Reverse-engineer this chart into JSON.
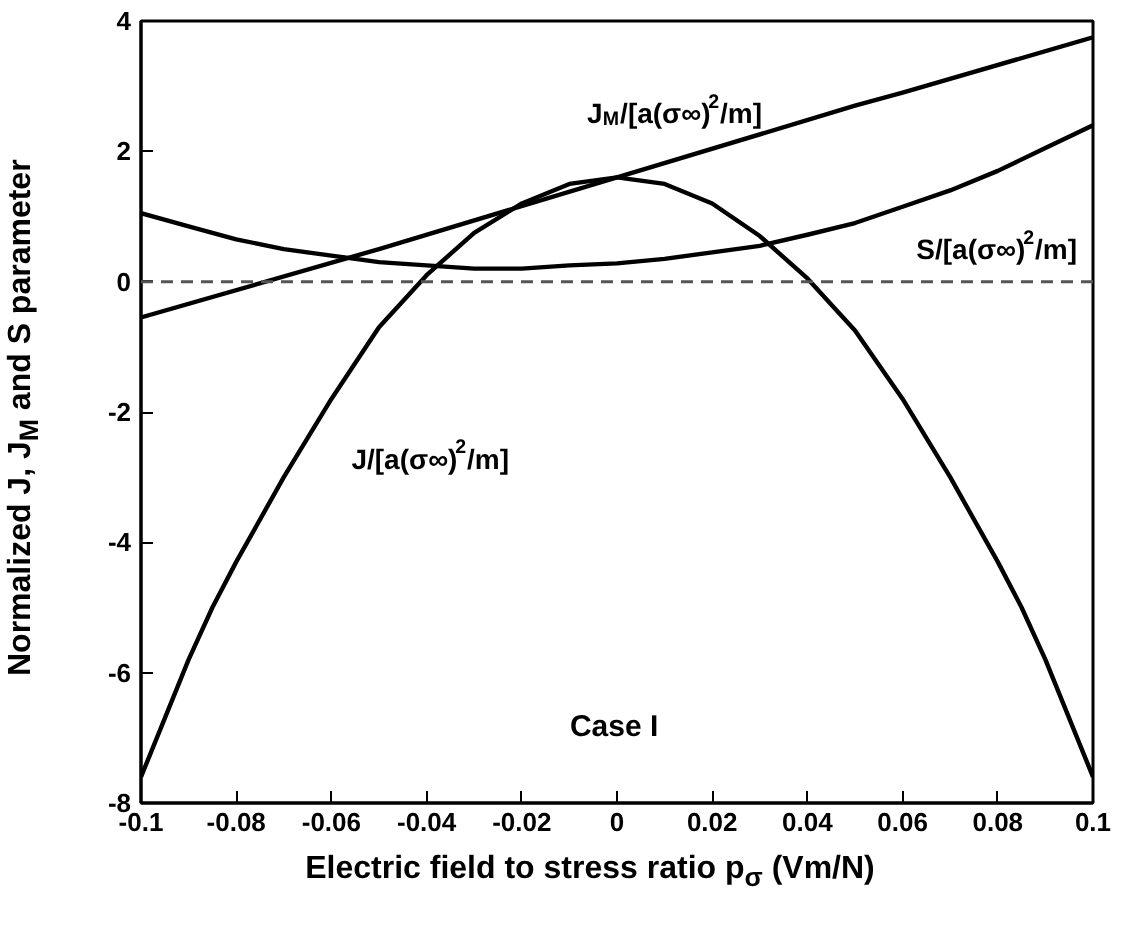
{
  "chart_data": {
    "type": "line",
    "xlabel": "Electric field to stress ratio p$_{σ}$ (Vm/N)",
    "ylabel": "Normalized J, J$_{M}$ and S parameter",
    "xlim": [
      -0.1,
      0.1
    ],
    "ylim": [
      -8,
      4
    ],
    "xticks": [
      -0.1,
      -0.08,
      -0.06,
      -0.04,
      -0.02,
      0,
      0.02,
      0.04,
      0.06,
      0.08,
      0.1
    ],
    "yticks": [
      -8,
      -6,
      -4,
      -2,
      0,
      2,
      4
    ],
    "grid": false,
    "line_style": "solid",
    "marker": "none",
    "ref_lines": [
      {
        "axis": "y",
        "value": 0,
        "color": "#555555",
        "line_style": "dashed"
      }
    ],
    "annotations": [
      "Case I"
    ],
    "series": [
      {
        "name": "J/[a(σ∞)$^{2}$/m]",
        "color": "#000000",
        "x": [
          -0.1,
          -0.09,
          -0.085,
          -0.08,
          -0.07,
          -0.06,
          -0.05,
          -0.04,
          -0.03,
          -0.02,
          -0.01,
          0,
          0.01,
          0.02,
          0.03,
          0.04,
          0.05,
          0.06,
          0.07,
          0.08,
          0.085,
          0.09,
          0.1
        ],
        "values": [
          -7.6,
          -5.8,
          -5.0,
          -4.3,
          -3.0,
          -1.8,
          -0.7,
          0.1,
          0.75,
          1.2,
          1.5,
          1.6,
          1.5,
          1.2,
          0.7,
          0.05,
          -0.75,
          -1.8,
          -3.0,
          -4.3,
          -5.0,
          -5.8,
          -7.6
        ]
      },
      {
        "name": "J$_{M}$/[a(σ∞)$^{2}$/m]",
        "color": "#000000",
        "x": [
          -0.1,
          -0.05,
          0,
          0.05,
          0.06,
          0.1
        ],
        "values": [
          -0.55,
          0.5,
          1.6,
          2.7,
          2.9,
          3.75
        ]
      },
      {
        "name": "S/[a(σ∞)$^{2}$/m]",
        "color": "#000000",
        "x": [
          -0.1,
          -0.09,
          -0.08,
          -0.07,
          -0.06,
          -0.05,
          -0.04,
          -0.03,
          -0.02,
          -0.01,
          0,
          0.01,
          0.02,
          0.03,
          0.04,
          0.05,
          0.06,
          0.07,
          0.08,
          0.09,
          0.1
        ],
        "values": [
          1.05,
          0.85,
          0.65,
          0.5,
          0.4,
          0.3,
          0.25,
          0.2,
          0.2,
          0.25,
          0.28,
          0.35,
          0.45,
          0.55,
          0.72,
          0.9,
          1.15,
          1.4,
          1.7,
          2.05,
          2.4
        ]
      }
    ]
  }
}
